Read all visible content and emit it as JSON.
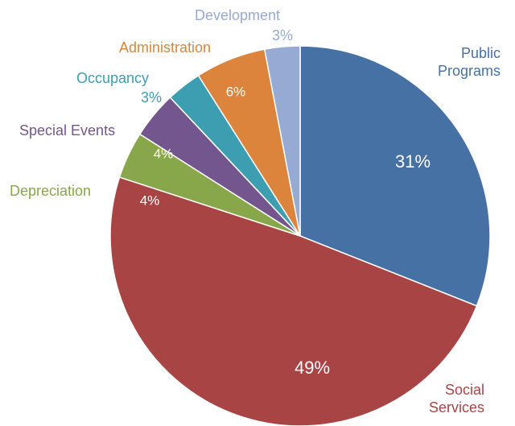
{
  "chart_data": {
    "type": "pie",
    "categories": [
      "Public Programs",
      "Social Services",
      "Depreciation",
      "Special Events",
      "Occupancy",
      "Administration",
      "Development"
    ],
    "values": [
      31,
      49,
      4,
      4,
      3,
      6,
      3
    ],
    "value_labels": [
      "31%",
      "49%",
      "4%",
      "4%",
      "3%",
      "6%",
      "3%"
    ],
    "colors": [
      "#4671a5",
      "#a84444",
      "#88a74b",
      "#74568f",
      "#3c9eb0",
      "#dc843b",
      "#97aad3"
    ]
  }
}
